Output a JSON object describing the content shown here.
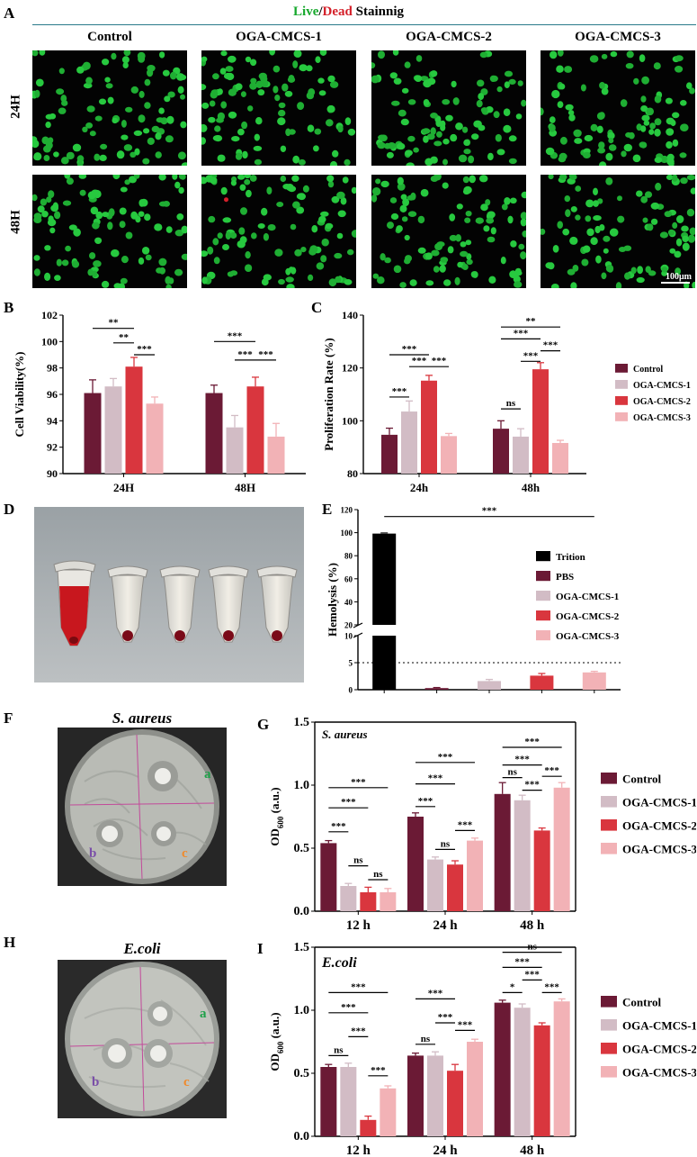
{
  "panels": {
    "A": "A",
    "B": "B",
    "C": "C",
    "D": "D",
    "E": "E",
    "F": "F",
    "G": "G",
    "H": "H",
    "I": "I"
  },
  "staining_title": {
    "live": "Live",
    "slash": "/",
    "dead": "Dead",
    "rest": " Stainnig"
  },
  "micro_columns": [
    "Control",
    "OGA-CMCS-1",
    "OGA-CMCS-2",
    "OGA-CMCS-3"
  ],
  "micro_rows": [
    "24H",
    "48H"
  ],
  "scale_bar": "100μm",
  "plate_F": {
    "title": "S. aureus",
    "labels": [
      "a",
      "b",
      "c"
    ]
  },
  "plate_H": {
    "title": "E.coli",
    "labels": [
      "a",
      "b",
      "c"
    ]
  },
  "colors": {
    "control": "#6b1a35",
    "cmcs1": "#d2bcc5",
    "cmcs2": "#d9363e",
    "cmcs3": "#f2b2b6",
    "trition": "#000000",
    "pbs": "#6b1a35",
    "live": "#16a82c",
    "dead": "#d4202a"
  },
  "chart_data": [
    {
      "id": "B",
      "type": "bar",
      "ylabel": "Cell Viability(%)",
      "categories": [
        "24H",
        "48H"
      ],
      "ylim": [
        90,
        102
      ],
      "yticks": [
        90,
        92,
        94,
        96,
        98,
        100,
        102
      ],
      "series": [
        {
          "name": "Control",
          "values": [
            96.1,
            96.1
          ],
          "err": [
            1.0,
            0.6
          ]
        },
        {
          "name": "OGA-CMCS-1",
          "values": [
            96.6,
            93.5
          ],
          "err": [
            0.6,
            0.9
          ]
        },
        {
          "name": "OGA-CMCS-2",
          "values": [
            98.1,
            96.6
          ],
          "err": [
            0.7,
            0.7
          ]
        },
        {
          "name": "OGA-CMCS-3",
          "values": [
            95.3,
            92.8
          ],
          "err": [
            0.5,
            1.0
          ]
        }
      ],
      "annotations": [
        "**",
        "**",
        "***",
        "***",
        "***",
        "***"
      ]
    },
    {
      "id": "C",
      "type": "bar",
      "ylabel": "Proliferation Rate (%)",
      "categories": [
        "24h",
        "48h"
      ],
      "ylim": [
        80,
        140
      ],
      "yticks": [
        80,
        100,
        120,
        140
      ],
      "series": [
        {
          "name": "Control",
          "values": [
            94.7,
            97.0
          ],
          "err": [
            2.5,
            3.0
          ]
        },
        {
          "name": "OGA-CMCS-1",
          "values": [
            103.5,
            94.0
          ],
          "err": [
            4.0,
            3.0
          ]
        },
        {
          "name": "OGA-CMCS-2",
          "values": [
            115.2,
            119.5
          ],
          "err": [
            2.0,
            2.5
          ]
        },
        {
          "name": "OGA-CMCS-3",
          "values": [
            94.2,
            91.6
          ],
          "err": [
            1.0,
            1.0
          ]
        }
      ],
      "legend": [
        "Control",
        "OGA-CMCS-1",
        "OGA-CMCS-2",
        "OGA-CMCS-3"
      ],
      "annotations": [
        "***",
        "***",
        "***",
        "***",
        "ns",
        "**",
        "***",
        "***",
        "***"
      ]
    },
    {
      "id": "E",
      "type": "bar",
      "ylabel": "Hemolysis (%)",
      "categories": [
        "Trition",
        "PBS",
        "OGA-CMCS-1",
        "OGA-CMCS-2",
        "OGA-CMCS-3"
      ],
      "values": [
        99.2,
        0.3,
        1.6,
        2.6,
        3.2
      ],
      "err": [
        0.6,
        0.1,
        0.3,
        0.4,
        0.2
      ],
      "ylim": [
        0,
        120
      ],
      "yticks": [
        0,
        5,
        10,
        20,
        40,
        60,
        80,
        100,
        120
      ],
      "axis_break": [
        10,
        20
      ],
      "threshold": 5,
      "legend": [
        "Trition",
        "PBS",
        "OGA-CMCS-1",
        "OGA-CMCS-2",
        "OGA-CMCS-3"
      ],
      "annotations": [
        "***"
      ]
    },
    {
      "id": "G",
      "type": "bar",
      "title": "S. aureus",
      "ylabel": "OD600 (a.u.)",
      "ylabel_main": "OD",
      "ylabel_sub": "600",
      "ylabel_tail": " (a.u.)",
      "categories": [
        "12 h",
        "24 h",
        "48 h"
      ],
      "ylim": [
        0,
        1.5
      ],
      "yticks": [
        "0.0",
        "0.5",
        "1.0",
        "1.5"
      ],
      "series": [
        {
          "name": "Control",
          "values": [
            0.54,
            0.75,
            0.93
          ],
          "err": [
            0.02,
            0.03,
            0.09
          ]
        },
        {
          "name": "OGA-CMCS-1",
          "values": [
            0.2,
            0.41,
            0.88
          ],
          "err": [
            0.02,
            0.02,
            0.04
          ]
        },
        {
          "name": "OGA-CMCS-2",
          "values": [
            0.15,
            0.37,
            0.64
          ],
          "err": [
            0.04,
            0.03,
            0.02
          ]
        },
        {
          "name": "OGA-CMCS-3",
          "values": [
            0.15,
            0.56,
            0.98
          ],
          "err": [
            0.03,
            0.02,
            0.04
          ]
        }
      ],
      "legend": [
        "Control",
        "OGA-CMCS-1",
        "OGA-CMCS-2",
        "OGA-CMCS-3"
      ],
      "annotations": [
        "***",
        "***",
        "***",
        "ns",
        "ns",
        "***",
        "***",
        "***",
        "ns",
        "***",
        "ns",
        "***",
        "***",
        "***",
        "***"
      ]
    },
    {
      "id": "I",
      "type": "bar",
      "title": "E.coli",
      "ylabel": "OD600 (a.u.)",
      "ylabel_main": "OD",
      "ylabel_sub": "600",
      "ylabel_tail": " (a.u.)",
      "categories": [
        "12 h",
        "24 h",
        "48 h"
      ],
      "ylim": [
        0,
        1.5
      ],
      "yticks": [
        "0.0",
        "0.5",
        "1.0",
        "1.5"
      ],
      "series": [
        {
          "name": "Control",
          "values": [
            0.55,
            0.64,
            1.06
          ],
          "err": [
            0.02,
            0.02,
            0.02
          ]
        },
        {
          "name": "OGA-CMCS-1",
          "values": [
            0.55,
            0.64,
            1.02
          ],
          "err": [
            0.03,
            0.03,
            0.03
          ]
        },
        {
          "name": "OGA-CMCS-2",
          "values": [
            0.13,
            0.52,
            0.88
          ],
          "err": [
            0.03,
            0.05,
            0.02
          ]
        },
        {
          "name": "OGA-CMCS-3",
          "values": [
            0.38,
            0.75,
            1.07
          ],
          "err": [
            0.02,
            0.02,
            0.02
          ]
        }
      ],
      "legend": [
        "Control",
        "OGA-CMCS-1",
        "OGA-CMCS-2",
        "OGA-CMCS-3"
      ],
      "annotations": [
        "ns",
        "***",
        "***",
        "***",
        "***",
        "ns",
        "***",
        "***",
        "***",
        "*",
        "***",
        "***",
        "***",
        "ns"
      ]
    }
  ]
}
